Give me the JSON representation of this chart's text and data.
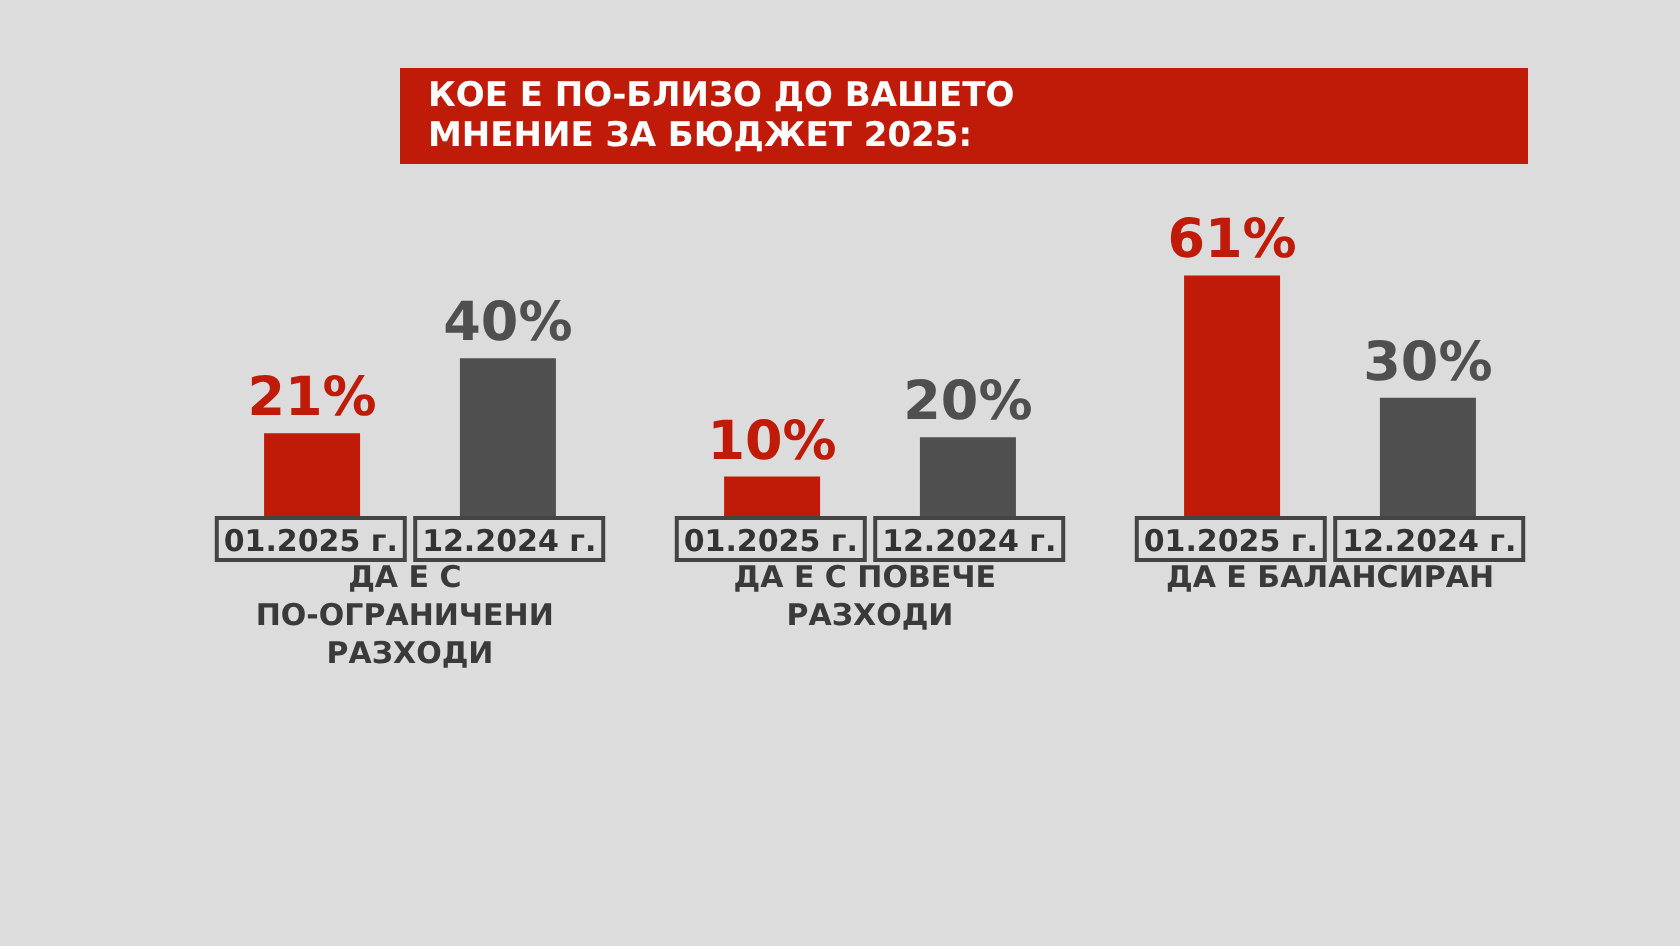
{
  "chart_data": {
    "type": "bar",
    "title": "КОЕ Е ПО-БЛИЗО ДО ВАШЕТО МНЕНИЕ ЗА БЮДЖЕТ 2025:",
    "categories": [
      "ДА Е С ПО-ОГРАНИЧЕНИ РАЗХОДИ",
      "ДА Е С ПОВЕЧЕ РАЗХОДИ",
      "ДА Е БАЛАНСИРАН"
    ],
    "series": [
      {
        "name": "01.2025 г.",
        "color": "#c01a08",
        "values": [
          21,
          10,
          61
        ],
        "value_labels": [
          "21%",
          "10%",
          "61%"
        ]
      },
      {
        "name": "12.2024 г.",
        "color": "#4f4f4f",
        "values": [
          40,
          20,
          30
        ],
        "value_labels": [
          "40%",
          "20%",
          "30%"
        ]
      }
    ],
    "legend": false,
    "grid": false
  }
}
